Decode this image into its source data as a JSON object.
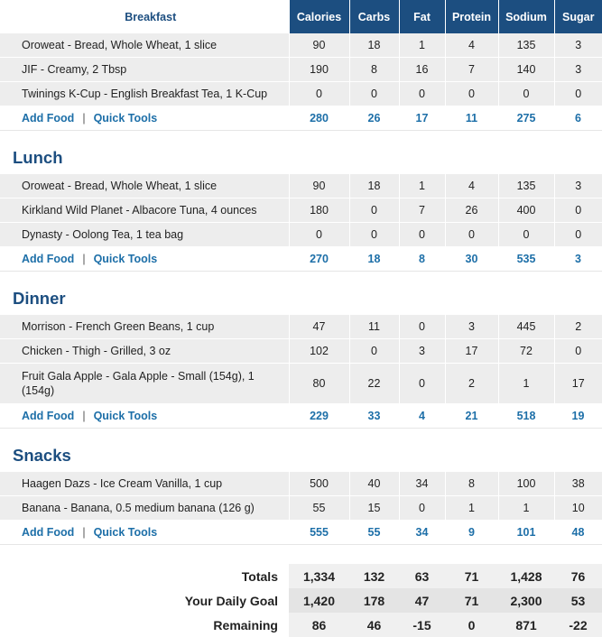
{
  "columns": [
    "Calories",
    "Carbs",
    "Fat",
    "Protein",
    "Sodium",
    "Sugar"
  ],
  "links": {
    "add_food": "Add Food",
    "quick_tools": "Quick Tools",
    "separator": "|"
  },
  "colors": {
    "header_bg": "#1c4e80",
    "link": "#1d6fa8",
    "positive": "#3a8e1e",
    "negative": "#d91e1e"
  },
  "meals": [
    {
      "title": "Breakfast",
      "foods": [
        {
          "name": "Oroweat - Bread, Whole Wheat, 1 slice",
          "values": [
            "90",
            "18",
            "1",
            "4",
            "135",
            "3"
          ]
        },
        {
          "name": "JIF - Creamy, 2 Tbsp",
          "values": [
            "190",
            "8",
            "16",
            "7",
            "140",
            "3"
          ]
        },
        {
          "name": "Twinings K-Cup - English Breakfast Tea, 1 K-Cup",
          "values": [
            "0",
            "0",
            "0",
            "0",
            "0",
            "0"
          ]
        }
      ],
      "totals": [
        "280",
        "26",
        "17",
        "11",
        "275",
        "6"
      ]
    },
    {
      "title": "Lunch",
      "foods": [
        {
          "name": "Oroweat - Bread, Whole Wheat, 1 slice",
          "values": [
            "90",
            "18",
            "1",
            "4",
            "135",
            "3"
          ]
        },
        {
          "name": "Kirkland Wild Planet - Albacore Tuna, 4 ounces",
          "values": [
            "180",
            "0",
            "7",
            "26",
            "400",
            "0"
          ]
        },
        {
          "name": "Dynasty - Oolong Tea, 1 tea bag",
          "values": [
            "0",
            "0",
            "0",
            "0",
            "0",
            "0"
          ]
        }
      ],
      "totals": [
        "270",
        "18",
        "8",
        "30",
        "535",
        "3"
      ]
    },
    {
      "title": "Dinner",
      "foods": [
        {
          "name": "Morrison - French Green Beans, 1 cup",
          "values": [
            "47",
            "11",
            "0",
            "3",
            "445",
            "2"
          ]
        },
        {
          "name": "Chicken - Thigh - Grilled, 3 oz",
          "values": [
            "102",
            "0",
            "3",
            "17",
            "72",
            "0"
          ]
        },
        {
          "name": "Fruit Gala Apple - Gala Apple - Small (154g), 1 (154g)",
          "values": [
            "80",
            "22",
            "0",
            "2",
            "1",
            "17"
          ]
        }
      ],
      "totals": [
        "229",
        "33",
        "4",
        "21",
        "518",
        "19"
      ]
    },
    {
      "title": "Snacks",
      "foods": [
        {
          "name": "Haagen Dazs - Ice Cream Vanilla, 1 cup",
          "values": [
            "500",
            "40",
            "34",
            "8",
            "100",
            "38"
          ]
        },
        {
          "name": "Banana - Banana, 0.5 medium banana (126 g)",
          "values": [
            "55",
            "15",
            "0",
            "1",
            "1",
            "10"
          ]
        }
      ],
      "totals": [
        "555",
        "55",
        "34",
        "9",
        "101",
        "48"
      ]
    }
  ],
  "summary": {
    "totals": {
      "label": "Totals",
      "values": [
        "1,334",
        "132",
        "63",
        "71",
        "1,428",
        "76"
      ]
    },
    "goal": {
      "label": "Your Daily Goal",
      "values": [
        "1,420",
        "178",
        "47",
        "71",
        "2,300",
        "53"
      ]
    },
    "remaining": {
      "label": "Remaining",
      "values": [
        "86",
        "46",
        "-15",
        "0",
        "871",
        "-22"
      ]
    }
  }
}
